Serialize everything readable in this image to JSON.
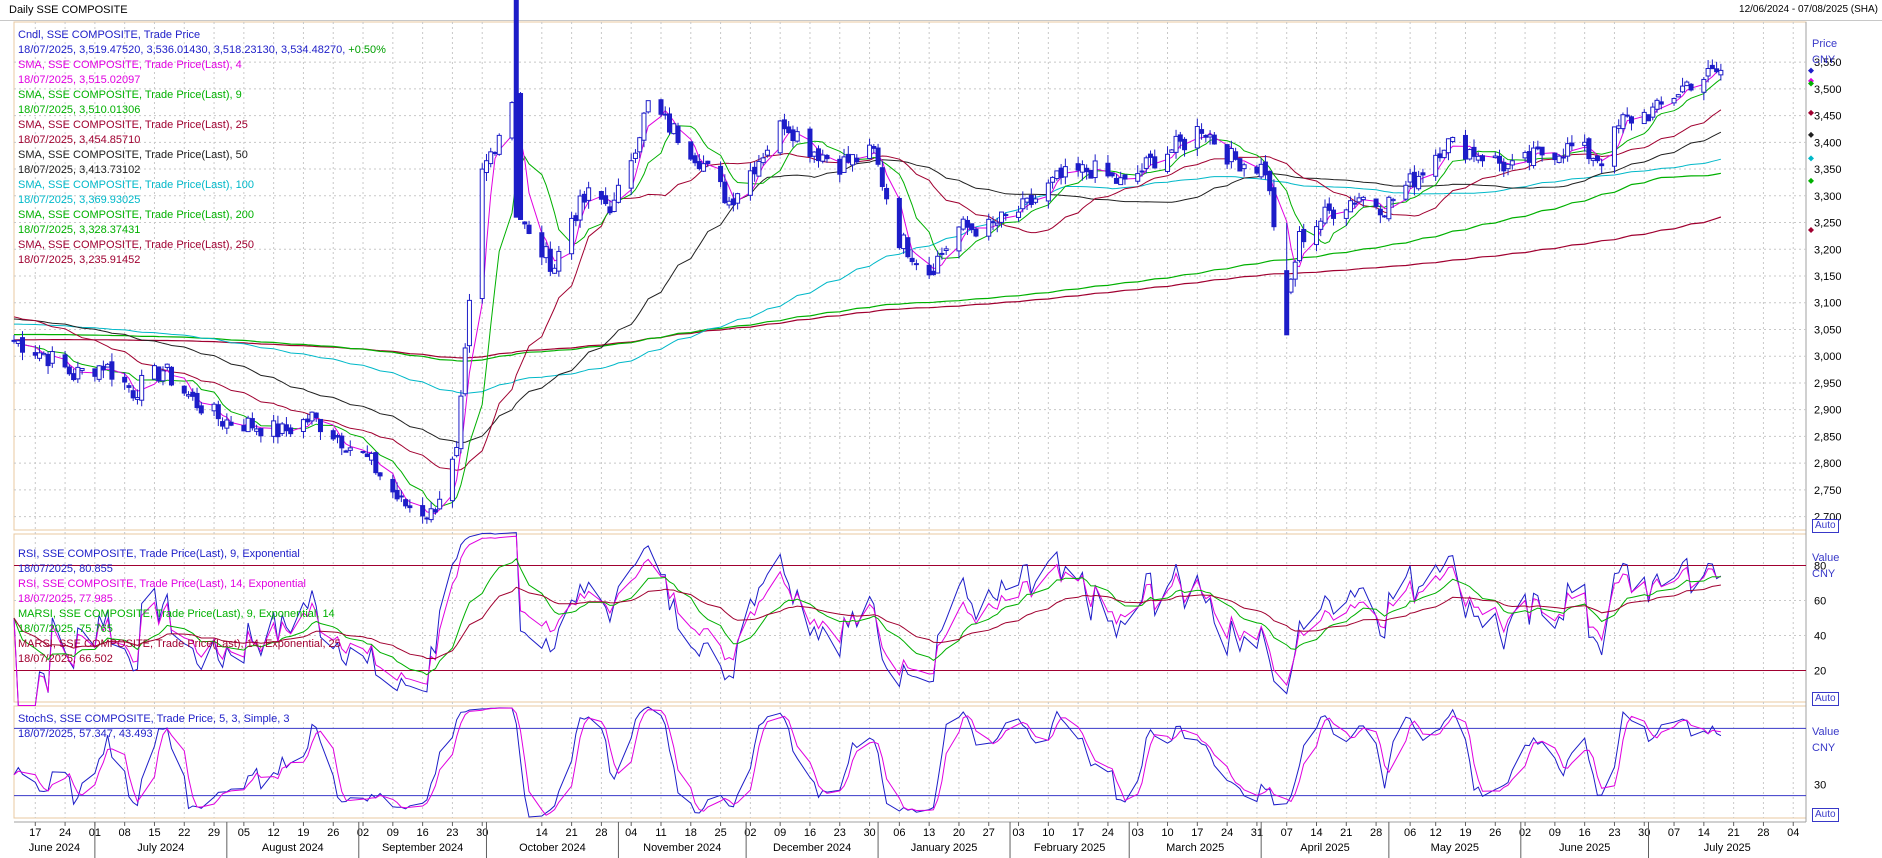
{
  "window": {
    "title": "Daily SSE COMPOSITE",
    "range": "12/06/2024 - 07/08/2025 (SHA)"
  },
  "price_panel": {
    "unit_title": "Price",
    "unit": "CNY",
    "auto": "Auto",
    "legend": [
      {
        "head": "Cndl, SSE COMPOSITE, Trade Price",
        "value": "18/07/2025, 3,519.47520, 3,536.01430, 3,518.23130, 3,534.48270,",
        "change": "+0.50%",
        "color": "#1d1dc8"
      },
      {
        "head": "SMA, SSE COMPOSITE, Trade Price(Last),  4",
        "value": "18/07/2025, 3,515.02097",
        "color": "#e000e0"
      },
      {
        "head": "SMA, SSE COMPOSITE, Trade Price(Last),  9",
        "value": "18/07/2025, 3,510.01306",
        "color": "#00b000"
      },
      {
        "head": "SMA, SSE COMPOSITE, Trade Price(Last),  25",
        "value": "18/07/2025, 3,454.85710",
        "color": "#a00030"
      },
      {
        "head": "SMA, SSE COMPOSITE, Trade Price(Last),  50",
        "value": "18/07/2025, 3,413.73102",
        "color": "#202020"
      },
      {
        "head": "SMA, SSE COMPOSITE, Trade Price(Last),  100",
        "value": "18/07/2025, 3,369.93025",
        "color": "#00b8c8"
      },
      {
        "head": "SMA, SSE COMPOSITE, Trade Price(Last),  200",
        "value": "18/07/2025, 3,328.37431",
        "color": "#00b000"
      },
      {
        "head": "SMA, SSE COMPOSITE, Trade Price(Last),  250",
        "value": "18/07/2025, 3,235.91452",
        "color": "#a00030"
      }
    ]
  },
  "rsi_panel": {
    "unit_title": "Value",
    "unit": "CNY",
    "auto": "Auto",
    "legend": [
      {
        "head": "RSI, SSE COMPOSITE, Trade Price(Last),  9, Exponential",
        "value": "18/07/2025, 80.855",
        "color": "#1d1dc8"
      },
      {
        "head": "RSI, SSE COMPOSITE, Trade Price(Last),  14, Exponential",
        "value": "18/07/2025, 77.985",
        "color": "#e000e0"
      },
      {
        "head": "MARSI, SSE COMPOSITE, Trade Price(Last),  9, Exponential, 14",
        "value": "18/07/2025, 75.765",
        "color": "#00b000"
      },
      {
        "head": "MARSI, SSE COMPOSITE, Trade Price(Last),  14, Exponential, 25",
        "value": "18/07/2025, 66.502",
        "color": "#a00030"
      }
    ]
  },
  "stoch_panel": {
    "unit_title": "Value",
    "unit": "CNY",
    "auto": "Auto",
    "legend": [
      {
        "head": "StochS, SSE COMPOSITE, Trade Price,  5, 3, Simple, 3",
        "value": "18/07/2025, 57.347, 43.493",
        "color": "#1d1dc8"
      }
    ]
  },
  "chart_data": {
    "type": "candlestick",
    "colors": {
      "up": "#ffffff",
      "down": "#1d1dc8",
      "sma4": "#e000e0",
      "sma9": "#00b000",
      "sma25": "#a00030",
      "sma50": "#202020",
      "sma100": "#00b8c8",
      "sma200": "#00b000",
      "sma250": "#a00030",
      "grid": "#c8c8c8",
      "band": "#a00030",
      "stoch_band": "#3838c8"
    },
    "price_axis": {
      "min": 2675,
      "max": 3625,
      "ticks": [
        "2,700",
        "2,750",
        "2,800",
        "2,850",
        "2,900",
        "2,950",
        "3,000",
        "3,050",
        "3,100",
        "3,150",
        "3,200",
        "3,250",
        "3,300",
        "3,350",
        "3,400",
        "3,450",
        "3,500",
        "3,550"
      ],
      "tick_values": [
        2700,
        2750,
        2800,
        2850,
        2900,
        2950,
        3000,
        3050,
        3100,
        3150,
        3200,
        3250,
        3300,
        3350,
        3400,
        3450,
        3500,
        3550
      ]
    },
    "rsi_axis": {
      "min": 2,
      "max": 98,
      "ticks": [
        "20",
        "40",
        "60",
        "80"
      ],
      "tick_values": [
        20,
        40,
        60,
        80
      ],
      "bands": [
        20,
        80
      ]
    },
    "stoch_axis": {
      "min": 0,
      "max": 100,
      "ticks": [
        "30"
      ],
      "tick_values": [
        30
      ],
      "bands": [
        20,
        80
      ]
    },
    "x_axis": {
      "day_labels": [
        "17",
        "24",
        "01",
        "08",
        "15",
        "22",
        "29",
        "05",
        "12",
        "19",
        "26",
        "02",
        "09",
        "16",
        "23",
        "30",
        "14",
        "21",
        "28",
        "04",
        "11",
        "18",
        "25",
        "02",
        "09",
        "16",
        "23",
        "30",
        "06",
        "13",
        "20",
        "27",
        "03",
        "10",
        "17",
        "24",
        "03",
        "10",
        "17",
        "24",
        "31",
        "07",
        "14",
        "21",
        "28",
        "06",
        "12",
        "19",
        "26",
        "02",
        "09",
        "16",
        "23",
        "30",
        "07",
        "14",
        "21",
        "28",
        "04"
      ],
      "day_dates": [
        "2024-06-17",
        "2024-06-24",
        "2024-07-01",
        "2024-07-08",
        "2024-07-15",
        "2024-07-22",
        "2024-07-29",
        "2024-08-05",
        "2024-08-12",
        "2024-08-19",
        "2024-08-26",
        "2024-09-02",
        "2024-09-09",
        "2024-09-16",
        "2024-09-23",
        "2024-09-30",
        "2024-10-14",
        "2024-10-21",
        "2024-10-28",
        "2024-11-04",
        "2024-11-11",
        "2024-11-18",
        "2024-11-25",
        "2024-12-02",
        "2024-12-09",
        "2024-12-16",
        "2024-12-23",
        "2024-12-30",
        "2025-01-06",
        "2025-01-13",
        "2025-01-20",
        "2025-01-27",
        "2025-02-03",
        "2025-02-10",
        "2025-02-17",
        "2025-02-24",
        "2025-03-03",
        "2025-03-10",
        "2025-03-17",
        "2025-03-24",
        "2025-03-31",
        "2025-04-07",
        "2025-04-14",
        "2025-04-21",
        "2025-04-28",
        "2025-05-06",
        "2025-05-12",
        "2025-05-19",
        "2025-05-26",
        "2025-06-02",
        "2025-06-09",
        "2025-06-16",
        "2025-06-23",
        "2025-06-30",
        "2025-07-07",
        "2025-07-14",
        "2025-07-21",
        "2025-07-28",
        "2025-08-04"
      ],
      "months": [
        "June 2024",
        "July 2024",
        "August 2024",
        "September 2024",
        "October 2024",
        "November 2024",
        "December 2024",
        "January 2025",
        "February 2025",
        "March 2025",
        "April 2025",
        "May 2025",
        "June 2025",
        "July 2025"
      ],
      "month_start_dates": [
        "2024-06-12",
        "2024-07-01",
        "2024-08-01",
        "2024-09-01",
        "2024-10-01",
        "2024-11-01",
        "2024-12-01",
        "2025-01-01",
        "2025-02-01",
        "2025-03-01",
        "2025-04-01",
        "2025-05-01",
        "2025-06-01",
        "2025-07-01"
      ],
      "start": "2024-06-12",
      "end": "2025-08-07"
    },
    "anchors": [
      [
        "2024-06-12",
        3030
      ],
      [
        "2024-06-19",
        3005
      ],
      [
        "2024-06-26",
        2965
      ],
      [
        "2024-07-03",
        2985
      ],
      [
        "2024-07-10",
        2935
      ],
      [
        "2024-07-17",
        2975
      ],
      [
        "2024-07-24",
        2918
      ],
      [
        "2024-07-31",
        2880
      ],
      [
        "2024-08-07",
        2872
      ],
      [
        "2024-08-14",
        2858
      ],
      [
        "2024-08-21",
        2885
      ],
      [
        "2024-08-28",
        2845
      ],
      [
        "2024-09-04",
        2800
      ],
      [
        "2024-09-11",
        2725
      ],
      [
        "2024-09-18",
        2705
      ],
      [
        "2024-09-24",
        2815
      ],
      [
        "2024-09-27",
        3090
      ],
      [
        "2024-09-30",
        3340
      ],
      [
        "2024-10-08",
        3500
      ],
      [
        "2024-10-09",
        3260
      ],
      [
        "2024-10-11",
        3220
      ],
      [
        "2024-10-17",
        3170
      ],
      [
        "2024-10-21",
        3260
      ],
      [
        "2024-10-25",
        3300
      ],
      [
        "2024-10-31",
        3280
      ],
      [
        "2024-11-08",
        3470
      ],
      [
        "2024-11-13",
        3430
      ],
      [
        "2024-11-20",
        3370
      ],
      [
        "2024-11-27",
        3290
      ],
      [
        "2024-12-04",
        3370
      ],
      [
        "2024-12-10",
        3440
      ],
      [
        "2024-12-16",
        3390
      ],
      [
        "2024-12-23",
        3360
      ],
      [
        "2024-12-31",
        3380
      ],
      [
        "2025-01-06",
        3220
      ],
      [
        "2025-01-13",
        3160
      ],
      [
        "2025-01-20",
        3240
      ],
      [
        "2025-01-27",
        3240
      ],
      [
        "2025-02-05",
        3280
      ],
      [
        "2025-02-12",
        3330
      ],
      [
        "2025-02-20",
        3350
      ],
      [
        "2025-02-28",
        3320
      ],
      [
        "2025-03-07",
        3370
      ],
      [
        "2025-03-14",
        3400
      ],
      [
        "2025-03-18",
        3430
      ],
      [
        "2025-03-25",
        3370
      ],
      [
        "2025-04-02",
        3350
      ],
      [
        "2025-04-07",
        3100
      ],
      [
        "2025-04-10",
        3220
      ],
      [
        "2025-04-17",
        3270
      ],
      [
        "2025-04-24",
        3300
      ],
      [
        "2025-04-30",
        3280
      ],
      [
        "2025-05-08",
        3340
      ],
      [
        "2025-05-14",
        3400
      ],
      [
        "2025-05-22",
        3380
      ],
      [
        "2025-05-30",
        3350
      ],
      [
        "2025-06-06",
        3380
      ],
      [
        "2025-06-13",
        3390
      ],
      [
        "2025-06-20",
        3370
      ],
      [
        "2025-06-25",
        3440
      ],
      [
        "2025-07-03",
        3460
      ],
      [
        "2025-07-10",
        3510
      ],
      [
        "2025-07-18",
        3534
      ]
    ],
    "spikes": [
      [
        "2024-10-08",
        3674,
        3260
      ],
      [
        "2025-04-07",
        3040,
        3160
      ]
    ],
    "last_close": 3534.4827
  }
}
